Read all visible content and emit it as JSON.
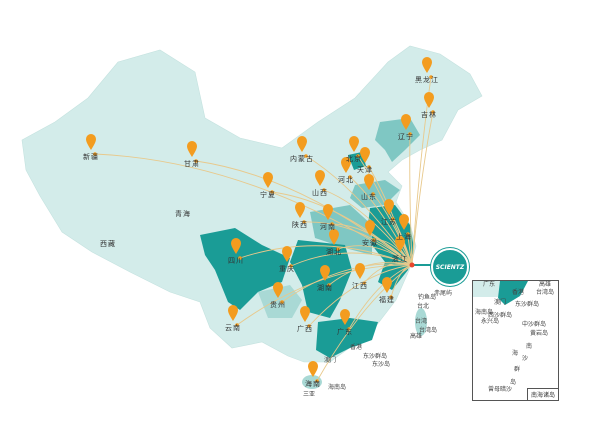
{
  "colors": {
    "land": "#d3ecea",
    "highlight_dark": "#1a9c96",
    "highlight_mid": "#7fc7c3",
    "marker": "#f39c1f",
    "flow_line": "#e8c98c",
    "origin": "#e8452c"
  },
  "logo": {
    "text": "SCIENTZ"
  },
  "origin": "浙江",
  "markers": [
    {
      "label": "新疆"
    },
    {
      "label": "甘肃"
    },
    {
      "label": "内蒙古"
    },
    {
      "label": "宁夏"
    },
    {
      "label": "黑龙江"
    },
    {
      "label": "吉林"
    },
    {
      "label": "辽宁"
    },
    {
      "label": "北京"
    },
    {
      "label": "天津"
    },
    {
      "label": "河北"
    },
    {
      "label": "山西"
    },
    {
      "label": "山东"
    },
    {
      "label": "江苏"
    },
    {
      "label": "上海"
    },
    {
      "label": "陕西"
    },
    {
      "label": "河南"
    },
    {
      "label": "安徽"
    },
    {
      "label": "湖北"
    },
    {
      "label": "浙江"
    },
    {
      "label": "四川"
    },
    {
      "label": "重庆"
    },
    {
      "label": "湖南"
    },
    {
      "label": "江西"
    },
    {
      "label": "福建"
    },
    {
      "label": "贵州"
    },
    {
      "label": "云南"
    },
    {
      "label": "广西"
    },
    {
      "label": "广东"
    },
    {
      "label": "海南"
    }
  ],
  "region_labels": [
    {
      "label": "青海"
    },
    {
      "label": "西藏"
    },
    {
      "label": "香港"
    },
    {
      "label": "澳门"
    },
    {
      "label": "三亚"
    },
    {
      "label": "海南岛"
    },
    {
      "label": "东沙群岛"
    },
    {
      "label": "东沙岛"
    },
    {
      "label": "钓鱼岛"
    },
    {
      "label": "赤尾屿"
    },
    {
      "label": "台北"
    },
    {
      "label": "台湾"
    },
    {
      "label": "台湾岛"
    },
    {
      "label": "高雄"
    }
  ],
  "inset": {
    "title": "南海诸岛",
    "labels": [
      {
        "label": "广东"
      },
      {
        "label": "高雄"
      },
      {
        "label": "台湾岛"
      },
      {
        "label": "香港"
      },
      {
        "label": "澳门"
      },
      {
        "label": "东沙群岛"
      },
      {
        "label": "海南岛"
      },
      {
        "label": "西沙群岛"
      },
      {
        "label": "永兴岛"
      },
      {
        "label": "中沙群岛"
      },
      {
        "label": "黄岩岛"
      },
      {
        "label": "南"
      },
      {
        "label": "海"
      },
      {
        "label": "沙"
      },
      {
        "label": "群"
      },
      {
        "label": "岛"
      },
      {
        "label": "曾母暗沙"
      }
    ]
  }
}
